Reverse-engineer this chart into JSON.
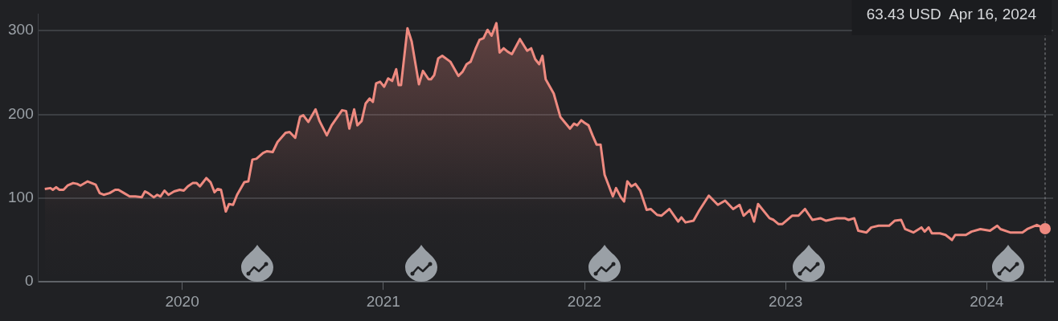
{
  "chart_data": {
    "type": "area",
    "marker": "none",
    "grid": "y",
    "xlim": [
      2019.285,
      2024.33
    ],
    "xticks": [
      2020,
      2021,
      2022,
      2023,
      2024
    ],
    "ylim": [
      0,
      320
    ],
    "yticks": [
      0,
      100,
      200,
      300
    ],
    "ref_lines": [
      {
        "axis": "x",
        "value": 2024.29,
        "label": "63.43 USD  Apr 16, 2024",
        "line_style": "dotted",
        "color": "#8a8d91"
      }
    ],
    "series": [
      {
        "color": "#ee8a80",
        "x": [
          2019.317,
          2019.345,
          2019.357,
          2019.373,
          2019.39,
          2019.41,
          2019.43,
          2019.458,
          2019.478,
          2019.494,
          2019.53,
          2019.55,
          2019.57,
          2019.59,
          2019.61,
          2019.639,
          2019.667,
          2019.683,
          2019.711,
          2019.739,
          2019.767,
          2019.799,
          2019.815,
          2019.831,
          2019.859,
          2019.876,
          2019.892,
          2019.912,
          2019.932,
          2019.96,
          2019.988,
          2020.008,
          2020.028,
          2020.052,
          2020.072,
          2020.088,
          2020.12,
          2020.141,
          2020.161,
          2020.177,
          2020.193,
          2020.217,
          2020.233,
          2020.253,
          2020.273,
          2020.309,
          2020.329,
          2020.349,
          2020.369,
          2020.402,
          2020.422,
          2020.45,
          2020.474,
          2020.514,
          2020.534,
          2020.562,
          2020.586,
          2020.602,
          2020.627,
          2020.663,
          2020.683,
          2020.719,
          2020.743,
          2020.795,
          2020.815,
          2020.831,
          2020.855,
          2020.871,
          2020.892,
          2020.912,
          2020.932,
          2020.948,
          2020.964,
          2020.984,
          2021.004,
          2021.024,
          2021.044,
          2021.064,
          2021.076,
          2021.088,
          2021.12,
          2021.141,
          2021.177,
          2021.197,
          2021.225,
          2021.237,
          2021.253,
          2021.273,
          2021.293,
          2021.333,
          2021.373,
          2021.394,
          2021.414,
          2021.434,
          2021.458,
          2021.478,
          2021.498,
          2021.518,
          2021.538,
          2021.562,
          2021.578,
          2021.598,
          2021.618,
          2021.639,
          2021.679,
          2021.715,
          2021.735,
          2021.755,
          2021.775,
          2021.791,
          2021.807,
          2021.847,
          2021.88,
          2021.928,
          2021.948,
          2021.964,
          2021.984,
          2022.0,
          2022.02,
          2022.04,
          2022.06,
          2022.08,
          2022.1,
          2022.141,
          2022.157,
          2022.181,
          2022.197,
          2022.213,
          2022.233,
          2022.253,
          2022.277,
          2022.309,
          2022.329,
          2022.361,
          2022.382,
          2022.422,
          2022.466,
          2022.482,
          2022.502,
          2022.542,
          2022.57,
          2022.618,
          2022.663,
          2022.699,
          2022.739,
          2022.771,
          2022.791,
          2022.823,
          2022.843,
          2022.863,
          2022.92,
          2022.94,
          2022.964,
          2022.984,
          2023.032,
          2023.064,
          2023.096,
          2023.133,
          2023.173,
          2023.201,
          2023.253,
          2023.293,
          2023.313,
          2023.341,
          2023.361,
          2023.402,
          2023.426,
          2023.462,
          2023.514,
          2023.542,
          2023.574,
          2023.594,
          2023.635,
          2023.675,
          2023.691,
          2023.711,
          2023.727,
          2023.767,
          2023.795,
          2023.827,
          2023.843,
          2023.896,
          2023.924,
          2023.968,
          2024.016,
          2024.052,
          2024.068,
          2024.116,
          2024.177,
          2024.201,
          2024.249,
          2024.29
        ],
        "values": [
          111,
          112,
          110,
          113,
          110,
          110,
          115,
          118,
          117,
          115,
          120,
          118,
          116,
          106,
          104,
          106,
          110,
          110,
          106,
          102,
          102,
          101,
          108,
          106,
          101,
          104,
          102,
          109,
          104,
          108,
          110,
          109,
          114,
          118,
          118,
          114,
          124,
          119,
          107,
          111,
          110,
          84,
          93,
          92,
          104,
          119,
          120,
          146,
          147,
          154,
          156,
          155,
          167,
          178,
          179,
          172,
          197,
          199,
          191,
          206,
          192,
          175,
          187,
          205,
          204,
          183,
          206,
          187,
          192,
          213,
          219,
          215,
          237,
          239,
          233,
          243,
          240,
          254,
          235,
          235,
          303,
          287,
          236,
          252,
          242,
          242,
          247,
          267,
          270,
          263,
          246,
          251,
          260,
          263,
          278,
          289,
          291,
          301,
          294,
          309,
          274,
          279,
          275,
          272,
          290,
          276,
          279,
          266,
          260,
          270,
          242,
          225,
          197,
          183,
          189,
          187,
          193,
          190,
          187,
          175,
          164,
          164,
          128,
          102,
          112,
          101,
          96,
          120,
          114,
          117,
          109,
          86,
          87,
          80,
          79,
          87,
          72,
          77,
          71,
          73,
          85,
          103,
          92,
          97,
          87,
          92,
          79,
          86,
          72,
          93,
          76,
          74,
          69,
          69,
          79,
          79,
          87,
          74,
          76,
          73,
          76,
          76,
          74,
          76,
          61,
          59,
          65,
          67,
          67,
          73,
          74,
          63,
          59,
          65,
          60,
          65,
          58,
          58,
          56,
          50,
          56,
          56,
          60,
          63,
          61,
          67,
          63,
          59,
          59,
          63,
          68,
          63.43
        ]
      }
    ]
  }
}
